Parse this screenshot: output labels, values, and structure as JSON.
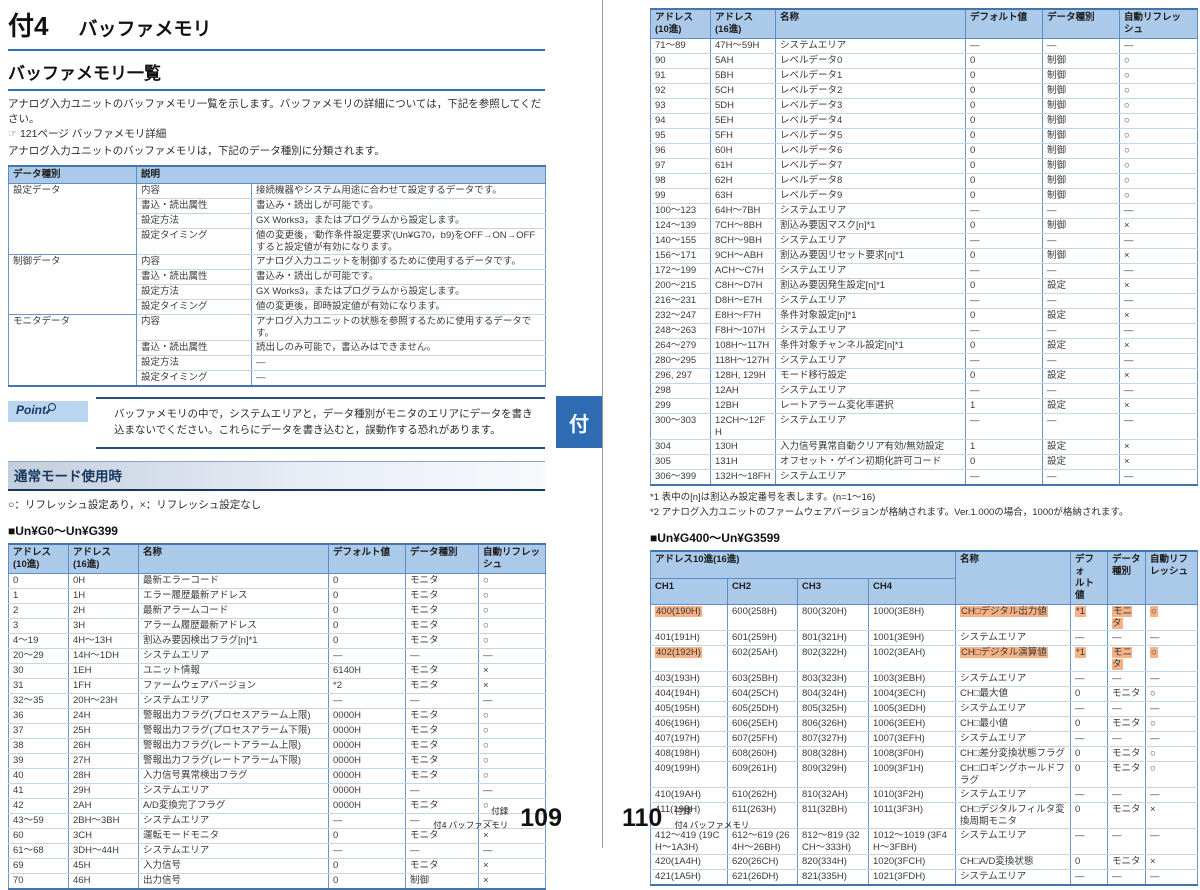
{
  "appendix_tab": "付",
  "colors": {
    "accent": "#2E74B5",
    "table_header_bg": "#ABC9E8",
    "highlight": "#F6B285",
    "tab_bg": "#2E6DB4"
  },
  "buffer_table_headers": [
    "アドレス\n(10進)",
    "アドレス\n(16進)",
    "名称",
    "デフォルト値",
    "データ種別",
    "自動リフレッ\nシュ"
  ],
  "left": {
    "chapter_num": "付4",
    "chapter_title": "バッファメモリ",
    "section_title": "バッファメモリ一覧",
    "intro1": "アナログ入力ユニットのバッファメモリ一覧を示します。バッファメモリの詳細については，下記を参照してください。",
    "ref_icon": "☞",
    "ref_text": "121ページ バッファメモリ詳細",
    "intro2": "アナログ入力ユニットのバッファメモリは，下記のデータ種別に分類されます。",
    "type_table": {
      "col1_header": "データ種別",
      "col2_header": "説明",
      "groups": [
        {
          "type": "設定データ",
          "rows": [
            [
              "内容",
              "接続機器やシステム用途に合わせて設定するデータです。"
            ],
            [
              "書込・読出属性",
              "書込み・読出しが可能です。"
            ],
            [
              "設定方法",
              "GX Works3，またはプログラムから設定します。"
            ],
            [
              "設定タイミング",
              "値の変更後，'動作条件設定要求'(Un¥G70，b9)をOFF→ON→OFFすると設定値が有効になります。"
            ]
          ]
        },
        {
          "type": "制御データ",
          "rows": [
            [
              "内容",
              "アナログ入力ユニットを制御するために使用するデータです。"
            ],
            [
              "書込・読出属性",
              "書込み・読出しが可能です。"
            ],
            [
              "設定方法",
              "GX Works3，またはプログラムから設定します。"
            ],
            [
              "設定タイミング",
              "値の変更後，即時設定値が有効になります。"
            ]
          ]
        },
        {
          "type": "モニタデータ",
          "rows": [
            [
              "内容",
              "アナログ入力ユニットの状態を参照するために使用するデータです。"
            ],
            [
              "書込・読出属性",
              "読出しのみ可能で，書込みはできません。"
            ],
            [
              "設定方法",
              "―"
            ],
            [
              "設定タイミング",
              "―"
            ]
          ]
        }
      ]
    },
    "point": {
      "label": "Point",
      "text": "バッファメモリの中で，システムエリアと，データ種別がモニタのエリアにデータを書き込まないでください。これらにデータを書き込むと，誤動作する恐れがあります。"
    },
    "mode_heading": "通常モード使用時",
    "legend": "○：リフレッシュ設定あり，×：リフレッシュ設定なし",
    "table_g0_title": "■Un¥G0～Un¥G399",
    "table_g0_rows": [
      [
        "0",
        "0H",
        "最新エラーコード",
        "0",
        "モニタ",
        "○"
      ],
      [
        "1",
        "1H",
        "エラー履歴最新アドレス",
        "0",
        "モニタ",
        "○"
      ],
      [
        "2",
        "2H",
        "最新アラームコード",
        "0",
        "モニタ",
        "○"
      ],
      [
        "3",
        "3H",
        "アラーム履歴最新アドレス",
        "0",
        "モニタ",
        "○"
      ],
      [
        "4～19",
        "4H～13H",
        "割込み要因検出フラグ[n]*1",
        "0",
        "モニタ",
        "○"
      ],
      [
        "20～29",
        "14H～1DH",
        "システムエリア",
        "―",
        "―",
        "―"
      ],
      [
        "30",
        "1EH",
        "ユニット情報",
        "6140H",
        "モニタ",
        "×"
      ],
      [
        "31",
        "1FH",
        "ファームウェアバージョン",
        "*2",
        "モニタ",
        "×"
      ],
      [
        "32～35",
        "20H～23H",
        "システムエリア",
        "―",
        "―",
        "―"
      ],
      [
        "36",
        "24H",
        "警報出力フラグ(プロセスアラーム上限)",
        "0000H",
        "モニタ",
        "○"
      ],
      [
        "37",
        "25H",
        "警報出力フラグ(プロセスアラーム下限)",
        "0000H",
        "モニタ",
        "○"
      ],
      [
        "38",
        "26H",
        "警報出力フラグ(レートアラーム上限)",
        "0000H",
        "モニタ",
        "○"
      ],
      [
        "39",
        "27H",
        "警報出力フラグ(レートアラーム下限)",
        "0000H",
        "モニタ",
        "○"
      ],
      [
        "40",
        "28H",
        "入力信号異常検出フラグ",
        "0000H",
        "モニタ",
        "○"
      ],
      [
        "41",
        "29H",
        "システムエリア",
        "0000H",
        "―",
        "―"
      ],
      [
        "42",
        "2AH",
        "A/D変換完了フラグ",
        "0000H",
        "モニタ",
        "○"
      ],
      [
        "43～59",
        "2BH～3BH",
        "システムエリア",
        "―",
        "―",
        "―"
      ],
      [
        "60",
        "3CH",
        "運転モードモニタ",
        "0",
        "モニタ",
        "×"
      ],
      [
        "61～68",
        "3DH～44H",
        "システムエリア",
        "―",
        "―",
        "―"
      ],
      [
        "69",
        "45H",
        "入力信号",
        "0",
        "モニタ",
        "×"
      ],
      [
        "70",
        "46H",
        "出力信号",
        "0",
        "制御",
        "×"
      ]
    ],
    "footer": {
      "section": "付録",
      "sub": "付4 バッファメモリ",
      "page": "109"
    }
  },
  "right": {
    "table_g0b_rows": [
      [
        "71～89",
        "47H～59H",
        "システムエリア",
        "―",
        "―",
        "―"
      ],
      [
        "90",
        "5AH",
        "レベルデータ0",
        "0",
        "制御",
        "○"
      ],
      [
        "91",
        "5BH",
        "レベルデータ1",
        "0",
        "制御",
        "○"
      ],
      [
        "92",
        "5CH",
        "レベルデータ2",
        "0",
        "制御",
        "○"
      ],
      [
        "93",
        "5DH",
        "レベルデータ3",
        "0",
        "制御",
        "○"
      ],
      [
        "94",
        "5EH",
        "レベルデータ4",
        "0",
        "制御",
        "○"
      ],
      [
        "95",
        "5FH",
        "レベルデータ5",
        "0",
        "制御",
        "○"
      ],
      [
        "96",
        "60H",
        "レベルデータ6",
        "0",
        "制御",
        "○"
      ],
      [
        "97",
        "61H",
        "レベルデータ7",
        "0",
        "制御",
        "○"
      ],
      [
        "98",
        "62H",
        "レベルデータ8",
        "0",
        "制御",
        "○"
      ],
      [
        "99",
        "63H",
        "レベルデータ9",
        "0",
        "制御",
        "○"
      ],
      [
        "100～123",
        "64H～7BH",
        "システムエリア",
        "―",
        "―",
        "―"
      ],
      [
        "124～139",
        "7CH～8BH",
        "割込み要因マスク[n]*1",
        "0",
        "制御",
        "×"
      ],
      [
        "140～155",
        "8CH～9BH",
        "システムエリア",
        "―",
        "―",
        "―"
      ],
      [
        "156～171",
        "9CH～ABH",
        "割込み要因リセット要求[n]*1",
        "0",
        "制御",
        "×"
      ],
      [
        "172～199",
        "ACH～C7H",
        "システムエリア",
        "―",
        "―",
        "―"
      ],
      [
        "200～215",
        "C8H～D7H",
        "割込み要因発生設定[n]*1",
        "0",
        "設定",
        "×"
      ],
      [
        "216～231",
        "D8H～E7H",
        "システムエリア",
        "―",
        "―",
        "―"
      ],
      [
        "232～247",
        "E8H～F7H",
        "条件対象設定[n]*1",
        "0",
        "設定",
        "×"
      ],
      [
        "248～263",
        "F8H～107H",
        "システムエリア",
        "―",
        "―",
        "―"
      ],
      [
        "264～279",
        "108H～117H",
        "条件対象チャンネル設定[n]*1",
        "0",
        "設定",
        "×"
      ],
      [
        "280～295",
        "118H～127H",
        "システムエリア",
        "―",
        "―",
        "―"
      ],
      [
        "296, 297",
        "128H, 129H",
        "モード移行設定",
        "0",
        "設定",
        "×"
      ],
      [
        "298",
        "12AH",
        "システムエリア",
        "―",
        "―",
        "―"
      ],
      [
        "299",
        "12BH",
        "レートアラーム変化率選択",
        "1",
        "設定",
        "×"
      ],
      [
        "300～303",
        "12CH～12FH",
        "システムエリア",
        "―",
        "―",
        "―"
      ],
      [
        "304",
        "130H",
        "入力信号異常自動クリア有効/無効設定",
        "1",
        "設定",
        "×"
      ],
      [
        "305",
        "131H",
        "オフセット・ゲイン初期化許可コード",
        "0",
        "設定",
        "×"
      ],
      [
        "306～399",
        "132H～18FH",
        "システムエリア",
        "―",
        "―",
        "―"
      ]
    ],
    "footnote1": "*1  表中の[n]は割込み設定番号を表します。(n=1～16)",
    "footnote2": "*2  アナログ入力ユニットのファームウェアバージョンが格納されます。Ver.1.000の場合，1000が格納されます。",
    "table_g400_title": "■Un¥G400～Un¥G3599",
    "g400_headers": {
      "addr": "アドレス10進(16進)",
      "ch": [
        "CH1",
        "CH2",
        "CH3",
        "CH4"
      ],
      "name": "名称",
      "default": "デフォ\nルト値",
      "type": "データ\n種別",
      "refresh": "自動リフ\nレッシュ"
    },
    "table_g400_rows": [
      {
        "cells": [
          "400(190H)",
          "600(258H)",
          "800(320H)",
          "1000(3E8H)",
          "CH□デジタル出力値",
          "*1",
          "モニタ",
          "○"
        ],
        "hl": [
          0,
          4,
          5,
          6,
          7
        ]
      },
      {
        "cells": [
          "401(191H)",
          "601(259H)",
          "801(321H)",
          "1001(3E9H)",
          "システムエリア",
          "―",
          "―",
          "―"
        ]
      },
      {
        "cells": [
          "402(192H)",
          "602(25AH)",
          "802(322H)",
          "1002(3EAH)",
          "CH□デジタル演算値",
          "*1",
          "モニタ",
          "○"
        ],
        "hl": [
          0,
          4,
          5,
          6,
          7
        ]
      },
      {
        "cells": [
          "403(193H)",
          "603(25BH)",
          "803(323H)",
          "1003(3EBH)",
          "システムエリア",
          "―",
          "―",
          "―"
        ]
      },
      {
        "cells": [
          "404(194H)",
          "604(25CH)",
          "804(324H)",
          "1004(3ECH)",
          "CH□最大値",
          "0",
          "モニタ",
          "○"
        ]
      },
      {
        "cells": [
          "405(195H)",
          "605(25DH)",
          "805(325H)",
          "1005(3EDH)",
          "システムエリア",
          "―",
          "―",
          "―"
        ]
      },
      {
        "cells": [
          "406(196H)",
          "606(25EH)",
          "806(326H)",
          "1006(3EEH)",
          "CH□最小値",
          "0",
          "モニタ",
          "○"
        ]
      },
      {
        "cells": [
          "407(197H)",
          "607(25FH)",
          "807(327H)",
          "1007(3EFH)",
          "システムエリア",
          "―",
          "―",
          "―"
        ]
      },
      {
        "cells": [
          "408(198H)",
          "608(260H)",
          "808(328H)",
          "1008(3F0H)",
          "CH□差分変換状態フラグ",
          "0",
          "モニタ",
          "○"
        ]
      },
      {
        "cells": [
          "409(199H)",
          "609(261H)",
          "809(329H)",
          "1009(3F1H)",
          "CH□ロギングホールドフラグ",
          "0",
          "モニタ",
          "○"
        ]
      },
      {
        "cells": [
          "410(19AH)",
          "610(262H)",
          "810(32AH)",
          "1010(3F2H)",
          "システムエリア",
          "―",
          "―",
          "―"
        ]
      },
      {
        "cells": [
          "411(19BH)",
          "611(263H)",
          "811(32BH)",
          "1011(3F3H)",
          "CH□デジタルフィルタ変換周期モニタ",
          "0",
          "モニタ",
          "×"
        ]
      },
      {
        "cells": [
          "412～419 (19CH～1A3H)",
          "612～619 (264H～26BH)",
          "812～819 (32CH～333H)",
          "1012～1019 (3F4H～3FBH)",
          "システムエリア",
          "―",
          "―",
          "―"
        ]
      },
      {
        "cells": [
          "420(1A4H)",
          "620(26CH)",
          "820(334H)",
          "1020(3FCH)",
          "CH□A/D変換状態",
          "0",
          "モニタ",
          "×"
        ]
      },
      {
        "cells": [
          "421(1A5H)",
          "621(26DH)",
          "821(335H)",
          "1021(3FDH)",
          "システムエリア",
          "―",
          "―",
          "―"
        ]
      }
    ],
    "footer": {
      "page": "110",
      "section": "付録",
      "sub": "付4 バッファメモリ"
    }
  }
}
